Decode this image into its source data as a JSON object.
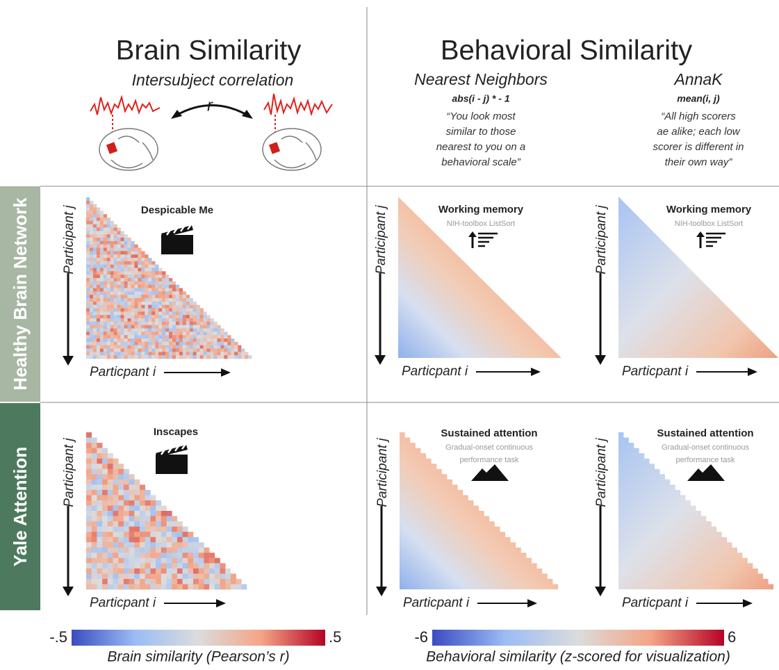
{
  "brain_header": {
    "title": "Brain Similarity",
    "subtitle": "Intersubject correlation",
    "symbol": "r"
  },
  "behavior_header": {
    "title": "Behavioral Similarity",
    "methods": [
      {
        "name": "Nearest Neighbors",
        "formula": "abs(i - j) * - 1",
        "quote": [
          "“You look most",
          "similar to those",
          "nearest to you on a",
          "behavioral scale”"
        ]
      },
      {
        "name": "AnnaK",
        "formula": "mean(i, j)",
        "quote": [
          "“All high scorers",
          "ae alike; each low",
          "scorer is different in",
          "their own way”"
        ]
      }
    ]
  },
  "axis_labels": {
    "x": "Particpant i",
    "y": "Participant j"
  },
  "rows": [
    {
      "label": "Healthy Brain Network",
      "brain_panel": {
        "title": "Despicable Me"
      },
      "behavior_panels": [
        {
          "title": "Working memory",
          "measure": [
            "NIH-toolbox ListSort"
          ]
        },
        {
          "title": "Working memory",
          "measure": [
            "NIH-toolbox ListSort"
          ]
        }
      ]
    },
    {
      "label": "Yale Attention",
      "brain_panel": {
        "title": "Inscapes"
      },
      "behavior_panels": [
        {
          "title": "Sustained attention",
          "measure": [
            "Gradual-onset continuous",
            "performance task"
          ]
        },
        {
          "title": "Sustained attention",
          "measure": [
            "Gradual-onset continuous",
            "performance task"
          ]
        }
      ]
    }
  ],
  "colorbars": [
    {
      "min": "-.5",
      "max": ".5",
      "title": "Brain similarity (Pearson’s r)"
    },
    {
      "min": "-6",
      "max": "6",
      "title": "Behavioral similarity (z-scored for visualization)"
    }
  ]
}
